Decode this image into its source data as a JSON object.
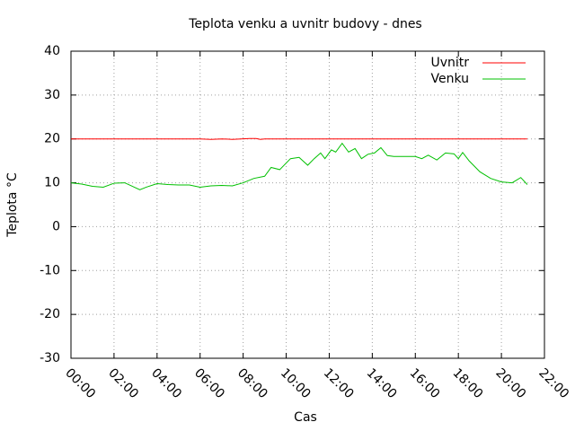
{
  "chart_data": {
    "type": "line",
    "title": "Teplota venku a uvnitr budovy - dnes",
    "x_label": "Cas",
    "y_label": "Teplota °C",
    "xlim": [
      0,
      22
    ],
    "ylim": [
      -30,
      40
    ],
    "xticks": [
      {
        "value": 0,
        "label": "00:00"
      },
      {
        "value": 2,
        "label": "02:00"
      },
      {
        "value": 4,
        "label": "04:00"
      },
      {
        "value": 6,
        "label": "06:00"
      },
      {
        "value": 8,
        "label": "08:00"
      },
      {
        "value": 10,
        "label": "10:00"
      },
      {
        "value": 12,
        "label": "12:00"
      },
      {
        "value": 14,
        "label": "14:00"
      },
      {
        "value": 16,
        "label": "16:00"
      },
      {
        "value": 18,
        "label": "18:00"
      },
      {
        "value": 20,
        "label": "20:00"
      },
      {
        "value": 22,
        "label": "22:00"
      }
    ],
    "yticks": [
      -30,
      -20,
      -10,
      0,
      10,
      20,
      30,
      40
    ],
    "grid": true,
    "legend": "top-right",
    "series": [
      {
        "name": "Uvnitr",
        "color": "#ff0000",
        "x": [
          0,
          6,
          6.5,
          7,
          7.5,
          8.3,
          8.6,
          8.8,
          9.0,
          21.2
        ],
        "values": [
          20,
          20,
          19.9,
          20,
          19.9,
          20.1,
          20.1,
          19.9,
          20,
          20
        ]
      },
      {
        "name": "Venku",
        "color": "#00c000",
        "x": [
          0,
          0.5,
          1,
          1.5,
          2,
          2.5,
          3.2,
          3.5,
          4,
          4.5,
          5,
          5.5,
          6,
          6.5,
          7,
          7.5,
          8,
          8.5,
          9,
          9.3,
          9.7,
          10.2,
          10.6,
          11,
          11.3,
          11.6,
          11.8,
          12.1,
          12.3,
          12.6,
          12.9,
          13.2,
          13.5,
          13.8,
          14.1,
          14.4,
          14.7,
          15,
          15.5,
          16,
          16.3,
          16.6,
          17,
          17.4,
          17.8,
          18,
          18.2,
          18.5,
          19,
          19.5,
          20,
          20.5,
          20.9,
          21.2
        ],
        "values": [
          10,
          9.7,
          9.2,
          9,
          9.9,
          10,
          8.4,
          9,
          9.8,
          9.6,
          9.5,
          9.5,
          9,
          9.3,
          9.4,
          9.3,
          10,
          11,
          11.5,
          13.5,
          13,
          15.5,
          15.8,
          14,
          15.5,
          16.8,
          15.5,
          17.5,
          17,
          19,
          17,
          17.8,
          15.5,
          16.5,
          16.8,
          18,
          16.2,
          16,
          16,
          16,
          15.5,
          16.3,
          15.2,
          16.8,
          16.6,
          15.5,
          16.9,
          15,
          12.5,
          11,
          10.2,
          10,
          11.2,
          9.6
        ]
      }
    ]
  }
}
